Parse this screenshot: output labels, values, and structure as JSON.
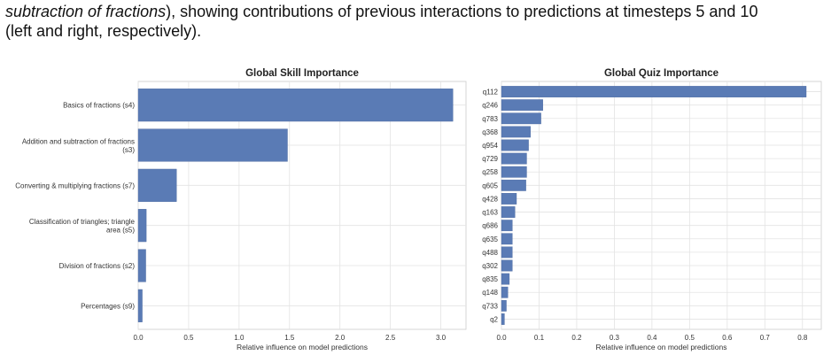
{
  "caption": {
    "line1_italic": "subtraction of fractions",
    "line1_rest": "), showing contributions of previous interactions to predictions at timesteps 5 and 10",
    "line2": "(left and right, respectively)."
  },
  "colors": {
    "bar": "#5a7bb5",
    "grid": "#e3e3e3",
    "frame": "#cccccc"
  },
  "chart_data": [
    {
      "type": "bar",
      "orientation": "horizontal",
      "title": "Global Skill Importance",
      "xlabel": "Relative influence on model predictions",
      "xlim": [
        0,
        3.25
      ],
      "xticks": [
        0.0,
        0.5,
        1.0,
        1.5,
        2.0,
        2.5,
        3.0
      ],
      "xtick_labels": [
        "0.0",
        "0.5",
        "1.0",
        "1.5",
        "2.0",
        "2.5",
        "3.0"
      ],
      "categories": [
        [
          "Basics of fractions (s4)"
        ],
        [
          "Addition and subtraction of fractions",
          "(s3)"
        ],
        [
          "Converting & multiplying fractions (s7)"
        ],
        [
          "Classification of triangles; triangle",
          "area (s5)"
        ],
        [
          "Division of fractions (s2)"
        ],
        [
          "Percentages (s9)"
        ]
      ],
      "values": [
        3.12,
        1.48,
        0.38,
        0.08,
        0.075,
        0.04
      ],
      "grid": true
    },
    {
      "type": "bar",
      "orientation": "horizontal",
      "title": "Global Quiz Importance",
      "xlabel": "Relative influence on model predictions",
      "xlim": [
        0,
        0.85
      ],
      "xticks": [
        0.0,
        0.1,
        0.2,
        0.3,
        0.4,
        0.5,
        0.6,
        0.7,
        0.8
      ],
      "xtick_labels": [
        "0.0",
        "0.1",
        "0.2",
        "0.3",
        "0.4",
        "0.5",
        "0.6",
        "0.7",
        "0.8"
      ],
      "categories": [
        [
          "q112"
        ],
        [
          "q246"
        ],
        [
          "q783"
        ],
        [
          "q368"
        ],
        [
          "q954"
        ],
        [
          "q729"
        ],
        [
          "q258"
        ],
        [
          "q605"
        ],
        [
          "q428"
        ],
        [
          "q163"
        ],
        [
          "q686"
        ],
        [
          "q635"
        ],
        [
          "q488"
        ],
        [
          "q302"
        ],
        [
          "q835"
        ],
        [
          "q148"
        ],
        [
          "q733"
        ],
        [
          "q2"
        ]
      ],
      "values": [
        0.81,
        0.11,
        0.105,
        0.077,
        0.072,
        0.067,
        0.067,
        0.065,
        0.04,
        0.036,
        0.029,
        0.029,
        0.029,
        0.029,
        0.021,
        0.017,
        0.013,
        0.008
      ],
      "grid": true
    }
  ]
}
